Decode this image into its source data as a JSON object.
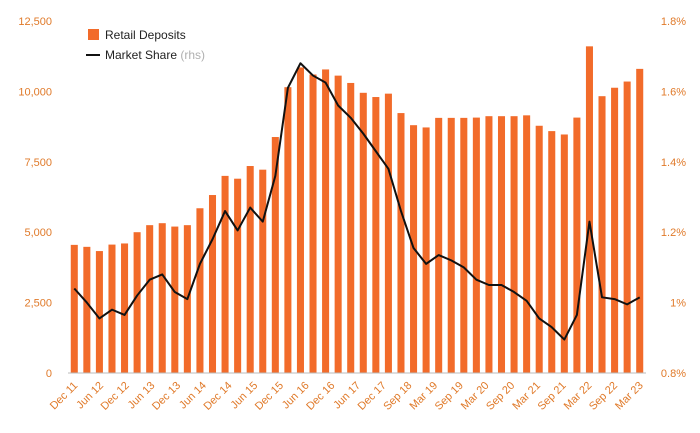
{
  "chart_data": {
    "type": "bar+line",
    "colors": {
      "bars": "#f26b2a",
      "line": "#111111",
      "ticks": "#e07a2a",
      "axis": "#bbbbbb"
    },
    "x_labels": [
      "Dec 11",
      "Jun 12",
      "Dec 12",
      "Jun 13",
      "Dec 13",
      "Jun 14",
      "Dec 14",
      "Jun 15",
      "Dec 15",
      "Jun 16",
      "Dec 16",
      "Jun 17",
      "Dec 17",
      "Sep 18",
      "Mar 19",
      "Sep 19",
      "Mar 20",
      "Sep 20",
      "Mar 21",
      "Sep 21",
      "Mar 22",
      "Sep 22",
      "Mar 23"
    ],
    "left_axis": {
      "ticks": [
        0,
        2500,
        5000,
        7500,
        10000,
        12500
      ],
      "tick_labels": [
        "0",
        "2,500",
        "5,000",
        "7,500",
        "10,000",
        "12,500"
      ],
      "range": [
        0,
        12500
      ]
    },
    "right_axis": {
      "ticks": [
        0.8,
        1.0,
        1.2,
        1.4,
        1.6,
        1.8
      ],
      "tick_labels": [
        "0.8%",
        "1%",
        "1.2%",
        "1.4%",
        "1.6%",
        "1.8%"
      ],
      "range": [
        0.8,
        1.8
      ]
    },
    "legend": {
      "position": "top-left"
    },
    "series": [
      {
        "name": "Retail Deposits",
        "kind": "bar",
        "axis": "left",
        "values": [
          4550,
          4480,
          4330,
          4560,
          4600,
          5000,
          5250,
          5320,
          5200,
          5250,
          5850,
          6320,
          7000,
          6900,
          7350,
          7220,
          8380,
          10150,
          10850,
          10600,
          10780,
          10560,
          10300,
          9950,
          9800,
          9920,
          9230,
          8800,
          8720,
          9060,
          9060,
          9060,
          9070,
          9120,
          9120,
          9120,
          9150,
          8780,
          8590,
          8470,
          9070,
          11600,
          9830,
          10130,
          10350,
          10800
        ]
      },
      {
        "name": "Market Share",
        "note": "(rhs)",
        "kind": "line",
        "axis": "right",
        "values": [
          1.04,
          1.0,
          0.955,
          0.98,
          0.965,
          1.02,
          1.065,
          1.08,
          1.03,
          1.01,
          1.11,
          1.18,
          1.26,
          1.205,
          1.27,
          1.23,
          1.36,
          1.61,
          1.68,
          1.645,
          1.625,
          1.56,
          1.525,
          1.48,
          1.43,
          1.38,
          1.26,
          1.155,
          1.11,
          1.135,
          1.12,
          1.1,
          1.065,
          1.05,
          1.05,
          1.03,
          1.005,
          0.955,
          0.93,
          0.895,
          0.965,
          1.23,
          1.015,
          1.01,
          0.995,
          1.015
        ]
      }
    ]
  }
}
